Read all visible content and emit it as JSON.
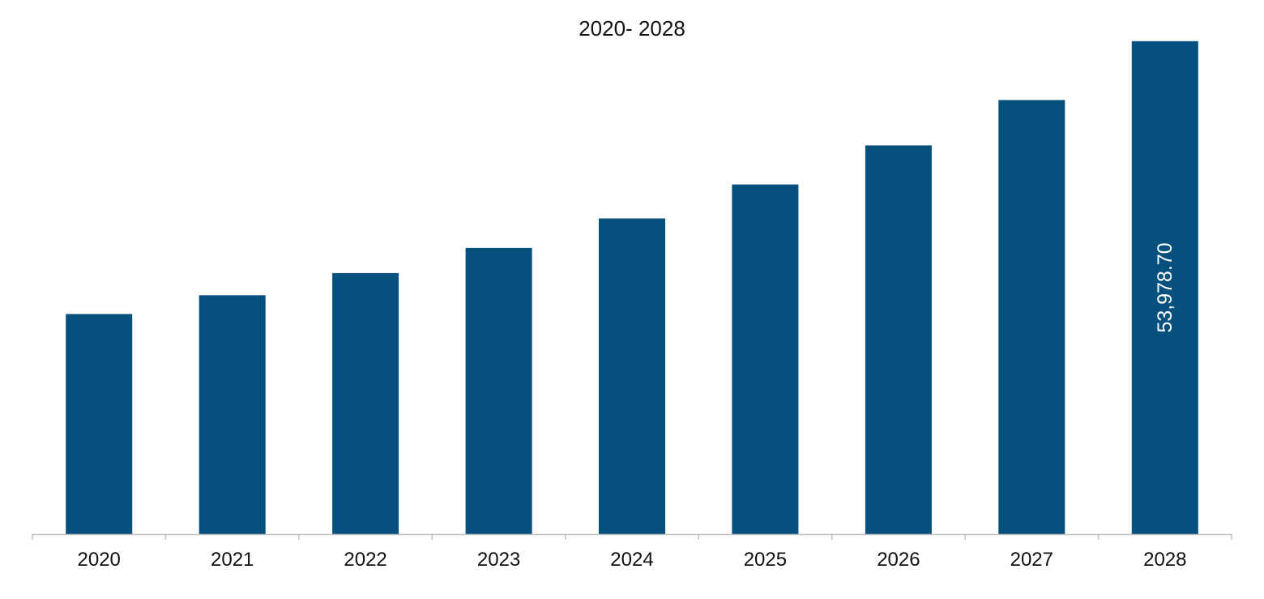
{
  "chart_data": {
    "type": "bar",
    "title": "2020- 2028",
    "xlabel": "",
    "ylabel": "",
    "categories": [
      "2020",
      "2021",
      "2022",
      "2023",
      "2024",
      "2025",
      "2026",
      "2027",
      "2028"
    ],
    "values": [
      24100,
      26150,
      28590,
      31340,
      34570,
      38290,
      42560,
      47530,
      53978.7
    ],
    "data_labels": [
      "",
      "",
      "",
      "",
      "",
      "",
      "",
      "",
      "53,978.70"
    ],
    "ylim": [
      0,
      56000
    ],
    "bar_color": "#06507D",
    "axis_color": "#BFBFBF",
    "grid": false,
    "legend": "none"
  }
}
